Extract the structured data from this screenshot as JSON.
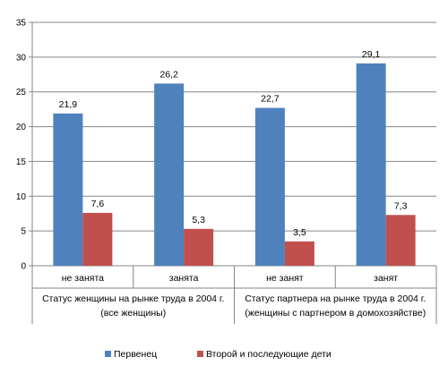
{
  "chart_data": {
    "type": "bar",
    "categories": [
      "не занята",
      "занята",
      "не занят",
      "занят"
    ],
    "groups": [
      {
        "label_lines": [
          "Статус женщины на рынке труда в 2004 г.",
          "(все женщины)"
        ],
        "categories": [
          0,
          1
        ]
      },
      {
        "label_lines": [
          "Статус партнера на рынке труда в 2004 г.",
          "(женщины с партнером в домохозяйстве)"
        ],
        "categories": [
          2,
          3
        ]
      }
    ],
    "series": [
      {
        "name": "Первенец",
        "values": [
          21.9,
          26.2,
          22.7,
          29.1
        ],
        "labels": [
          "21,9",
          "26,2",
          "22,7",
          "29,1"
        ],
        "color": "#4F81BD"
      },
      {
        "name": "Второй и последующие дети",
        "values": [
          7.6,
          5.3,
          3.5,
          7.3
        ],
        "labels": [
          "7,6",
          "5,3",
          "3,5",
          "7,3"
        ],
        "color": "#C0504D"
      }
    ],
    "ylim": [
      0,
      35
    ],
    "yticks": [
      0,
      5,
      10,
      15,
      20,
      25,
      30,
      35
    ],
    "grid": true,
    "legend": "bottom",
    "title": "",
    "xlabel": "",
    "ylabel": ""
  }
}
